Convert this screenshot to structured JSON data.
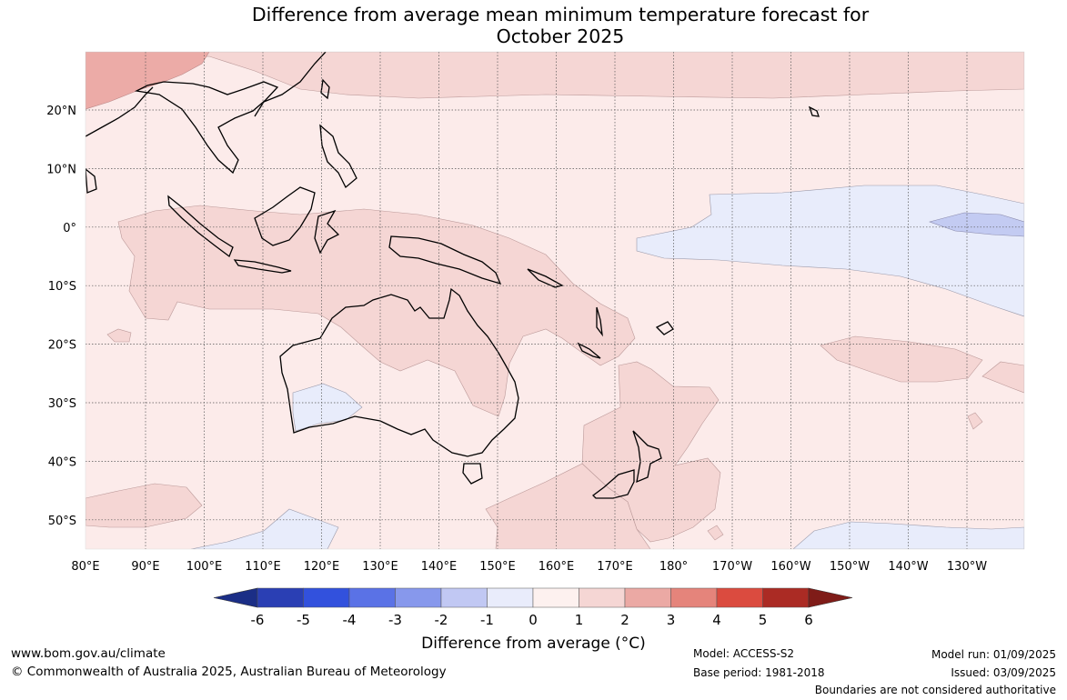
{
  "header": {
    "title_line1": "Difference from average mean minimum temperature forecast for",
    "title_line2": "October 2025"
  },
  "map": {
    "lon_labels": [
      "80°E",
      "90°E",
      "100°E",
      "110°E",
      "120°E",
      "130°E",
      "140°E",
      "150°E",
      "160°E",
      "170°E",
      "180°",
      "170°W",
      "160°W",
      "150°W",
      "140°W",
      "130°W"
    ],
    "lat_labels": [
      "20°N",
      "10°N",
      "0°",
      "10°S",
      "20°S",
      "30°S",
      "40°S",
      "50°S"
    ],
    "colors": {
      "band_0_1": "#fcebea",
      "band_1_2": "#f5d6d4",
      "band_2_3": "#ecaba7",
      "band_m1_0": "#e8ecfb",
      "band_m2_m1": "#c3cbf2",
      "land_outline": "#000000",
      "grid": "#555555"
    }
  },
  "colorbar": {
    "colors": [
      "#1b2e86",
      "#2a3fb4",
      "#3251dd",
      "#5a72e6",
      "#8798ec",
      "#c1c8f3",
      "#e9ecfb",
      "#fdf1ef",
      "#f5d6d4",
      "#eba9a4",
      "#e5847b",
      "#db4b3f",
      "#ab2b24",
      "#7f1c18"
    ],
    "tick_labels": [
      "-6",
      "-5",
      "-4",
      "-3",
      "-2",
      "-1",
      "0",
      "1",
      "2",
      "3",
      "4",
      "5",
      "6"
    ],
    "title": "Difference from average (°C)"
  },
  "footer": {
    "website": "www.bom.gov.au/climate",
    "copyright": "© Commonwealth of Australia 2025, Australian Bureau of Meteorology",
    "model": "Model: ACCESS-S2",
    "base_period": "Base period: 1981-2018",
    "model_run": "Model run: 01/09/2025",
    "issued": "Issued: 03/09/2025",
    "disclaimer": "Boundaries are not considered authoritative"
  }
}
